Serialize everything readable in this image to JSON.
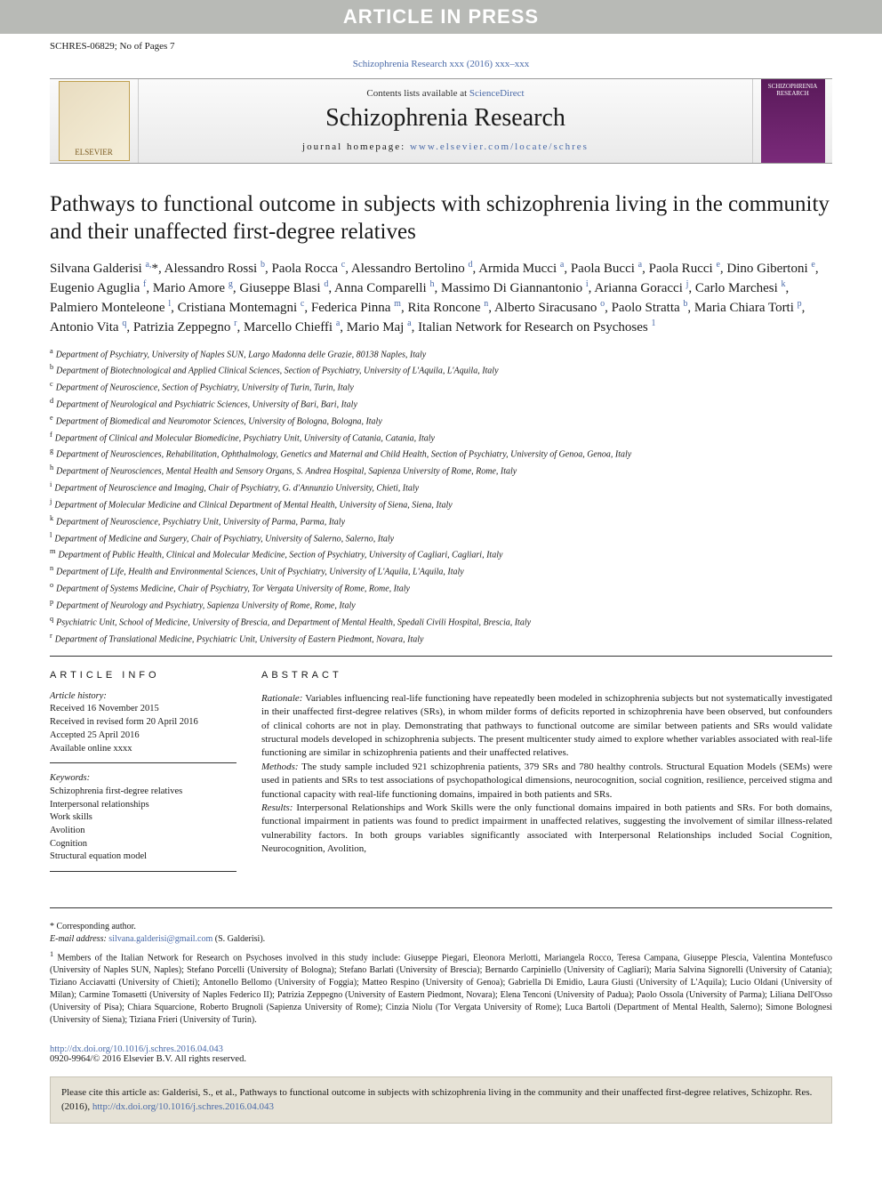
{
  "banner": "ARTICLE IN PRESS",
  "meta_left": "SCHRES-06829; No of Pages 7",
  "citation_line": "Schizophrenia Research xxx (2016) xxx–xxx",
  "masthead": {
    "publisher_logo": "ELSEVIER",
    "contents_prefix": "Contents lists available at ",
    "contents_link": "ScienceDirect",
    "journal": "Schizophrenia Research",
    "homepage_prefix": "journal homepage: ",
    "homepage_link": "www.elsevier.com/locate/schres",
    "cover_text": "SCHIZOPHRENIA RESEARCH"
  },
  "title": "Pathways to functional outcome in subjects with schizophrenia living in the community and their unaffected first-degree relatives",
  "authors_html": "Silvana Galderisi <sup>a,</sup>*, Alessandro Rossi <sup>b</sup>, Paola Rocca <sup>c</sup>, Alessandro Bertolino <sup>d</sup>, Armida Mucci <sup>a</sup>, Paola Bucci <sup>a</sup>, Paola Rucci <sup>e</sup>, Dino Gibertoni <sup>e</sup>, Eugenio Aguglia <sup>f</sup>, Mario Amore <sup>g</sup>, Giuseppe Blasi <sup>d</sup>, Anna Comparelli <sup>h</sup>, Massimo Di Giannantonio <sup>i</sup>, Arianna Goracci <sup>j</sup>, Carlo Marchesi <sup>k</sup>, Palmiero Monteleone <sup>l</sup>, Cristiana Montemagni <sup>c</sup>, Federica Pinna <sup>m</sup>, Rita Roncone <sup>n</sup>, Alberto Siracusano <sup>o</sup>, Paolo Stratta <sup>b</sup>, Maria Chiara Torti <sup>p</sup>, Antonio Vita <sup>q</sup>, Patrizia Zeppegno <sup>r</sup>, Marcello Chieffi <sup>a</sup>, Mario Maj <sup>a</sup>, Italian Network for Research on Psychoses <sup>1</sup>",
  "affiliations": [
    {
      "k": "a",
      "t": "Department of Psychiatry, University of Naples SUN, Largo Madonna delle Grazie, 80138 Naples, Italy"
    },
    {
      "k": "b",
      "t": "Department of Biotechnological and Applied Clinical Sciences, Section of Psychiatry, University of L'Aquila, L'Aquila, Italy"
    },
    {
      "k": "c",
      "t": "Department of Neuroscience, Section of Psychiatry, University of Turin, Turin, Italy"
    },
    {
      "k": "d",
      "t": "Department of Neurological and Psychiatric Sciences, University of Bari, Bari, Italy"
    },
    {
      "k": "e",
      "t": "Department of Biomedical and Neuromotor Sciences, University of Bologna, Bologna, Italy"
    },
    {
      "k": "f",
      "t": "Department of Clinical and Molecular Biomedicine, Psychiatry Unit, University of Catania, Catania, Italy"
    },
    {
      "k": "g",
      "t": "Department of Neurosciences, Rehabilitation, Ophthalmology, Genetics and Maternal and Child Health, Section of Psychiatry, University of Genoa, Genoa, Italy"
    },
    {
      "k": "h",
      "t": "Department of Neurosciences, Mental Health and Sensory Organs, S. Andrea Hospital, Sapienza University of Rome, Rome, Italy"
    },
    {
      "k": "i",
      "t": "Department of Neuroscience and Imaging, Chair of Psychiatry, G. d'Annunzio University, Chieti, Italy"
    },
    {
      "k": "j",
      "t": "Department of Molecular Medicine and Clinical Department of Mental Health, University of Siena, Siena, Italy"
    },
    {
      "k": "k",
      "t": "Department of Neuroscience, Psychiatry Unit, University of Parma, Parma, Italy"
    },
    {
      "k": "l",
      "t": "Department of Medicine and Surgery, Chair of Psychiatry, University of Salerno, Salerno, Italy"
    },
    {
      "k": "m",
      "t": "Department of Public Health, Clinical and Molecular Medicine, Section of Psychiatry, University of Cagliari, Cagliari, Italy"
    },
    {
      "k": "n",
      "t": "Department of Life, Health and Environmental Sciences, Unit of Psychiatry, University of L'Aquila, L'Aquila, Italy"
    },
    {
      "k": "o",
      "t": "Department of Systems Medicine, Chair of Psychiatry, Tor Vergata University of Rome, Rome, Italy"
    },
    {
      "k": "p",
      "t": "Department of Neurology and Psychiatry, Sapienza University of Rome, Rome, Italy"
    },
    {
      "k": "q",
      "t": "Psychiatric Unit, School of Medicine, University of Brescia, and Department of Mental Health, Spedali Civili Hospital, Brescia, Italy"
    },
    {
      "k": "r",
      "t": "Department of Translational Medicine, Psychiatric Unit, University of Eastern Piedmont, Novara, Italy"
    }
  ],
  "info": {
    "heading": "ARTICLE INFO",
    "history_label": "Article history:",
    "received": "Received 16 November 2015",
    "revised": "Received in revised form 20 April 2016",
    "accepted": "Accepted 25 April 2016",
    "online": "Available online xxxx",
    "keywords_label": "Keywords:",
    "keywords": [
      "Schizophrenia first-degree relatives",
      "Interpersonal relationships",
      "Work skills",
      "Avolition",
      "Cognition",
      "Structural equation model"
    ]
  },
  "abstract": {
    "heading": "ABSTRACT",
    "rationale_label": "Rationale:",
    "rationale": " Variables influencing real-life functioning have repeatedly been modeled in schizophrenia subjects but not systematically investigated in their unaffected first-degree relatives (SRs), in whom milder forms of deficits reported in schizophrenia have been observed, but confounders of clinical cohorts are not in play. Demonstrating that pathways to functional outcome are similar between patients and SRs would validate structural models developed in schizophrenia subjects. The present multicenter study aimed to explore whether variables associated with real-life functioning are similar in schizophrenia patients and their unaffected relatives.",
    "methods_label": "Methods:",
    "methods": " The study sample included 921 schizophrenia patients, 379 SRs and 780 healthy controls. Structural Equation Models (SEMs) were used in patients and SRs to test associations of psychopathological dimensions, neurocognition, social cognition, resilience, perceived stigma and functional capacity with real-life functioning domains, impaired in both patients and SRs.",
    "results_label": "Results:",
    "results": " Interpersonal Relationships and Work Skills were the only functional domains impaired in both patients and SRs. For both domains, functional impairment in patients was found to predict impairment in unaffected relatives, suggesting the involvement of similar illness-related vulnerability factors. In both groups variables significantly associated with Interpersonal Relationships included Social Cognition, Neurocognition, Avolition,"
  },
  "footer": {
    "corr": "* Corresponding author.",
    "email_label": "E-mail address: ",
    "email": "silvana.galderisi@gmail.com",
    "email_tail": " (S. Galderisi).",
    "network_label": "1",
    "network": " Members of the Italian Network for Research on Psychoses involved in this study include: Giuseppe Piegari, Eleonora Merlotti, Mariangela Rocco, Teresa Campana, Giuseppe Plescia, Valentina Montefusco (University of Naples SUN, Naples); Stefano Porcelli (University of Bologna); Stefano Barlati (University of Brescia); Bernardo Carpiniello (University of Cagliari); Maria Salvina Signorelli (University of Catania); Tiziano Acciavatti (University of Chieti); Antonello Bellomo (University of Foggia); Matteo Respino (University of Genoa); Gabriella Di Emidio, Laura Giusti (University of L'Aquila); Lucio Oldani (University of Milan); Carmine Tomasetti (University of Naples Federico II); Patrizia Zeppegno (University of Eastern Piedmont, Novara); Elena Tenconi (University of Padua); Paolo Ossola (University of Parma); Liliana Dell'Osso (University of Pisa); Chiara Squarcione, Roberto Brugnoli (Sapienza University of Rome); Cinzia Niolu (Tor Vergata University of Rome); Luca Bartoli (Department of Mental Health, Salerno); Simone Bolognesi (University of Siena); Tiziana Frieri (University of Turin)."
  },
  "doi": {
    "link": "http://dx.doi.org/10.1016/j.schres.2016.04.043",
    "copyright": "0920-9964/© 2016 Elsevier B.V. All rights reserved."
  },
  "citebox": {
    "text": "Please cite this article as: Galderisi, S., et al., Pathways to functional outcome in subjects with schizophrenia living in the community and their unaffected first-degree relatives, Schizophr. Res. (2016), ",
    "link": "http://dx.doi.org/10.1016/j.schres.2016.04.043"
  }
}
